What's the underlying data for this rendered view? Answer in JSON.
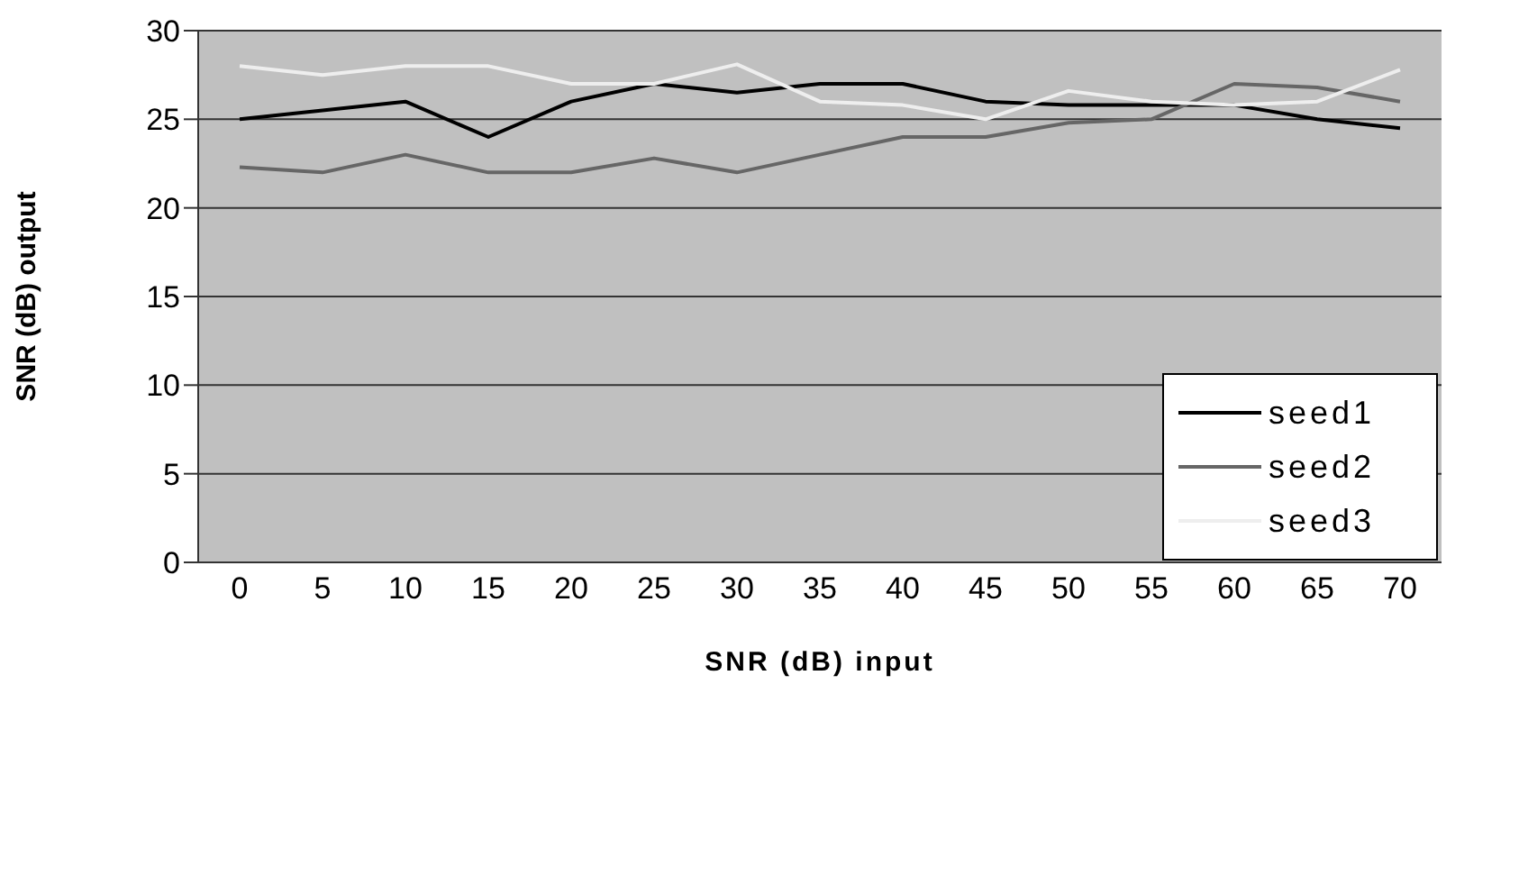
{
  "chart_data": {
    "type": "line",
    "xlabel": "SNR (dB) input",
    "ylabel": "SNR (dB) output",
    "categories": [
      "0",
      "5",
      "10",
      "15",
      "20",
      "25",
      "30",
      "35",
      "40",
      "45",
      "50",
      "55",
      "60",
      "65",
      "70"
    ],
    "series": [
      {
        "name": "seed1",
        "color": "#000000",
        "values": [
          25,
          25.5,
          26,
          24,
          26,
          27,
          26.5,
          27,
          27,
          26,
          25.8,
          25.8,
          25.8,
          25,
          24.5
        ]
      },
      {
        "name": "seed2",
        "color": "#666666",
        "values": [
          22.3,
          22,
          23,
          22,
          22,
          22.8,
          22,
          23,
          24,
          24,
          24.8,
          25,
          27,
          26.8,
          26
        ]
      },
      {
        "name": "seed3",
        "color": "#eeeeee",
        "values": [
          28,
          27.5,
          28,
          28,
          27,
          27,
          28.1,
          26,
          25.8,
          25,
          26.6,
          26,
          25.8,
          26,
          27.8
        ]
      }
    ],
    "ylim": [
      0,
      30
    ],
    "yticks": [
      0,
      5,
      10,
      15,
      20,
      25,
      30
    ],
    "grid": "y",
    "legend": "right",
    "marker": "none",
    "line_style": "solid"
  }
}
